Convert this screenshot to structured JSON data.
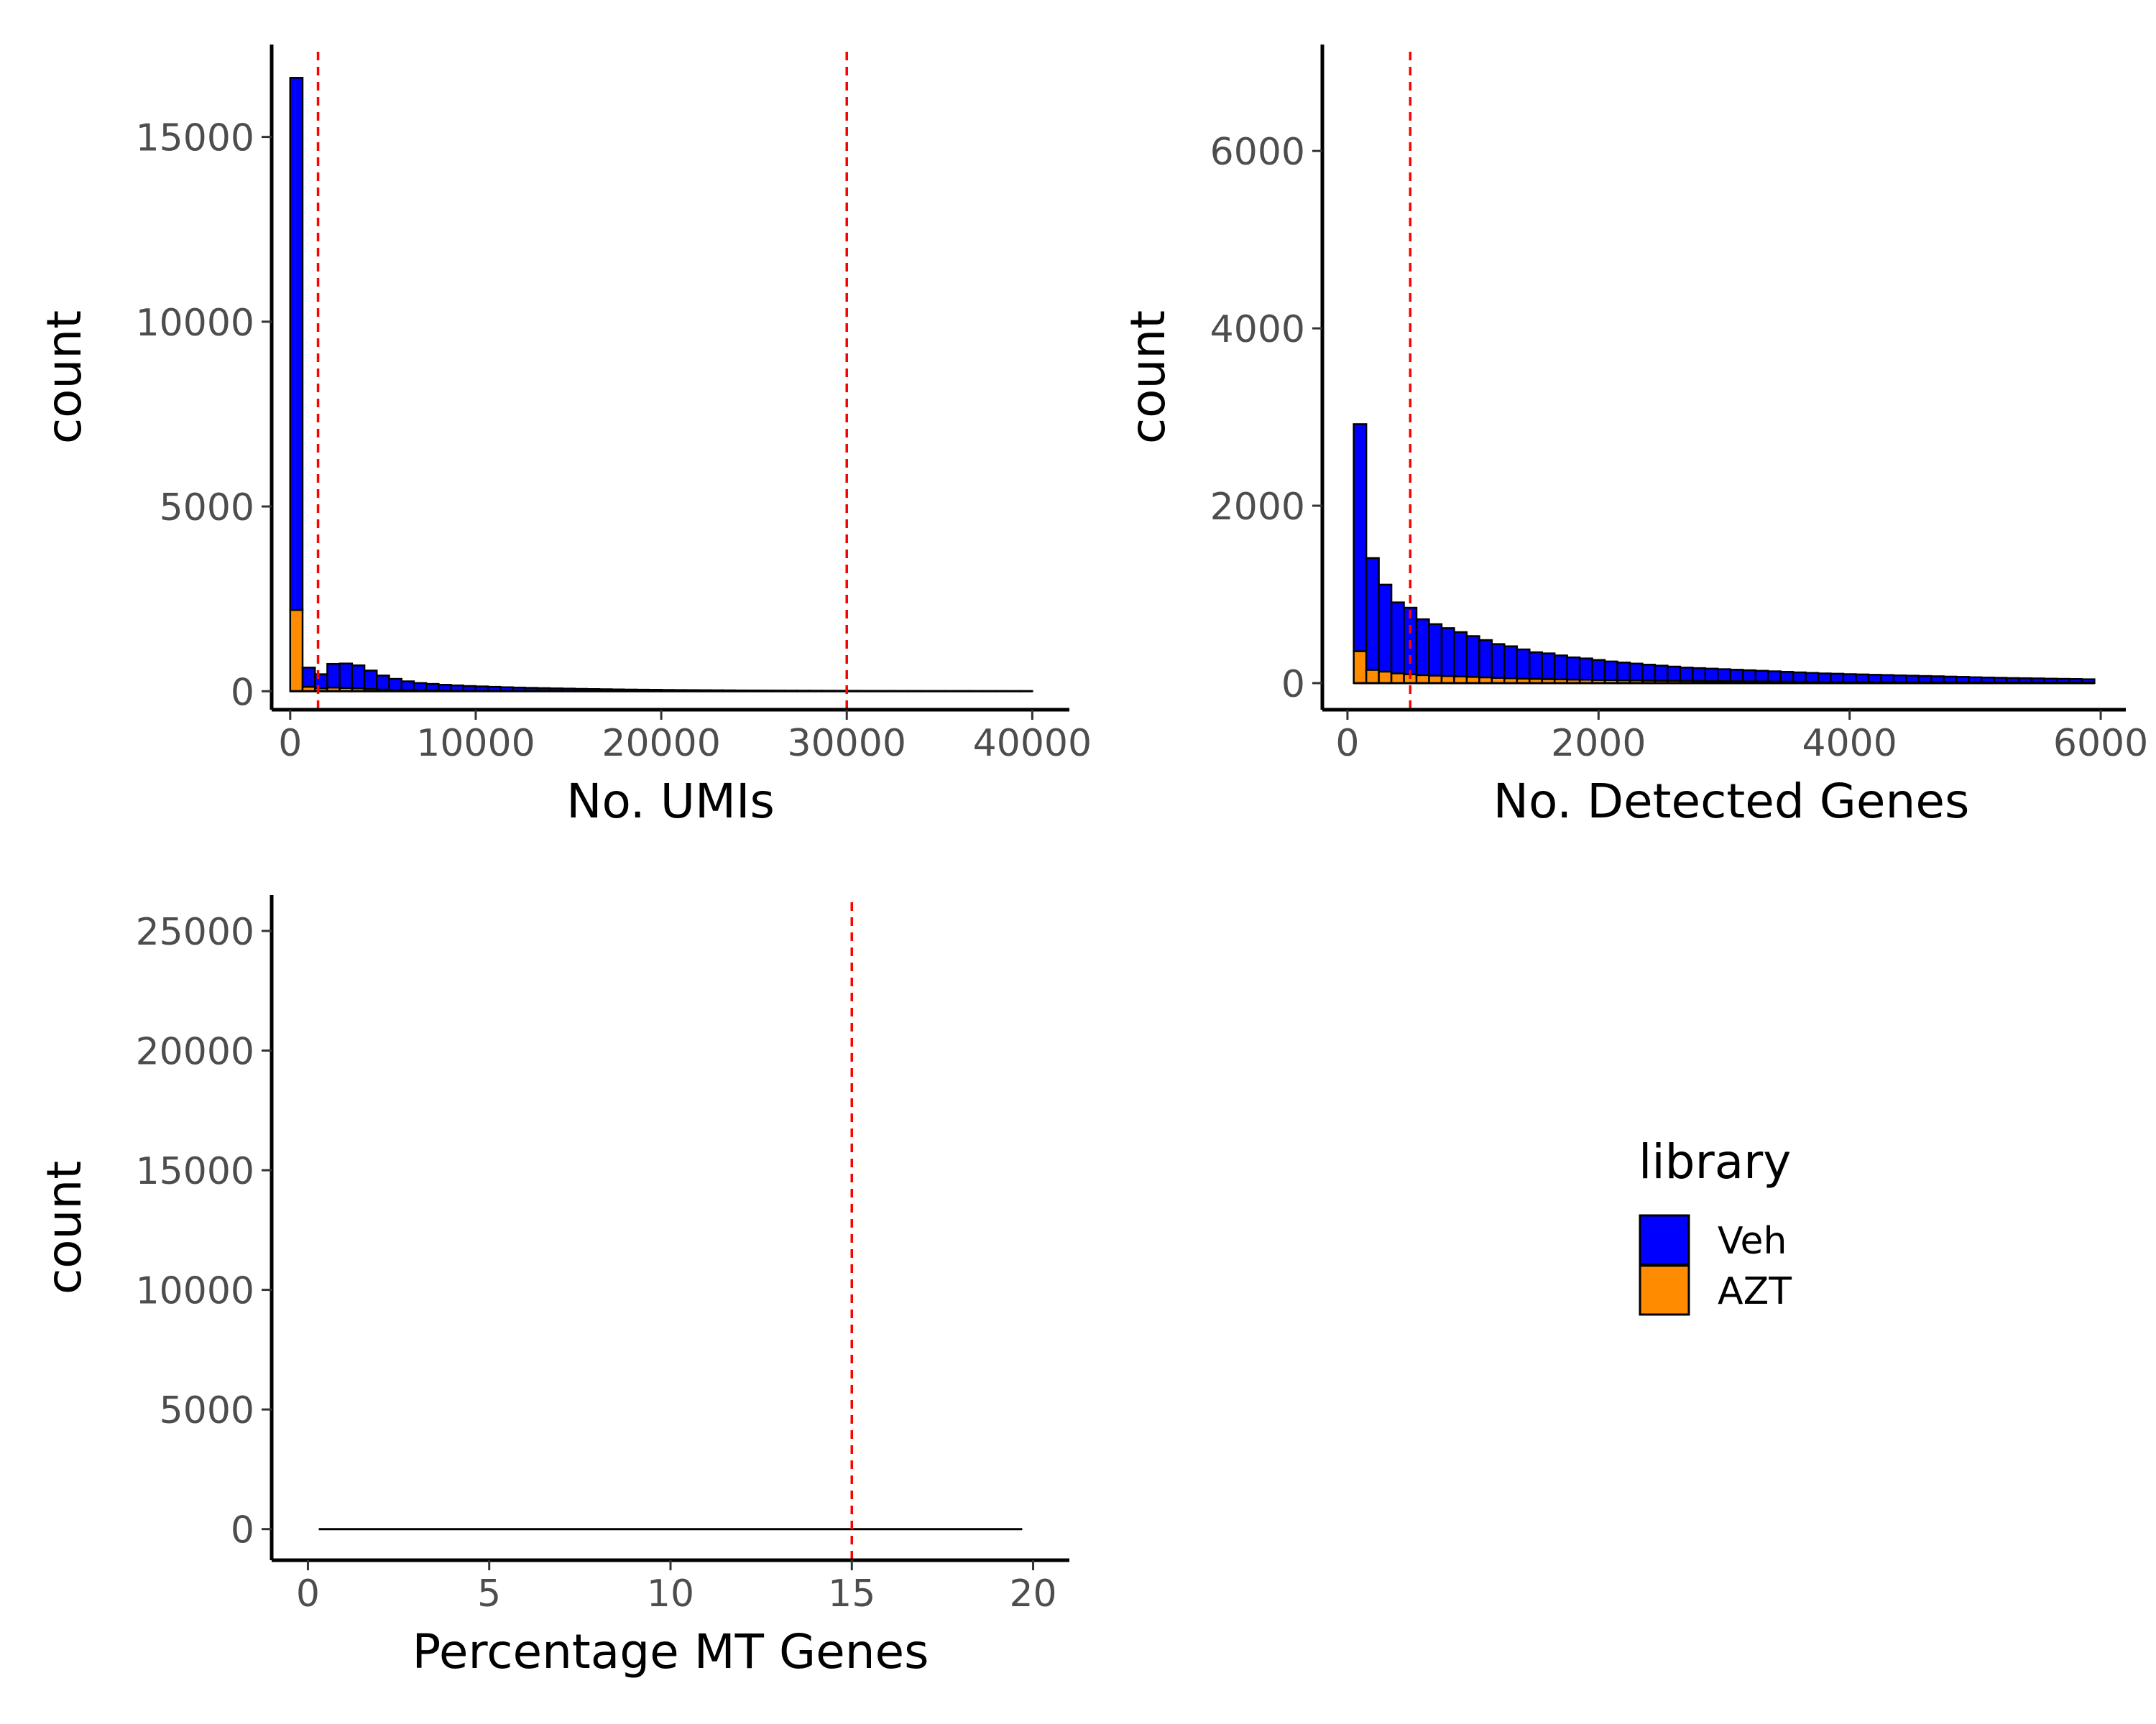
{
  "chart_data": [
    {
      "type": "bar",
      "stacked": true,
      "xlabel": "No. UMIs",
      "ylabel": "count",
      "xlim": [
        -1000,
        42000
      ],
      "ylim": [
        -500,
        17500
      ],
      "xticks": [
        0,
        10000,
        20000,
        30000,
        40000
      ],
      "yticks": [
        0,
        5000,
        10000,
        15000
      ],
      "bin_width": 667,
      "bin_centers": [
        333,
        1000,
        1667,
        2333,
        3000,
        3667,
        4333,
        5000,
        5667,
        6333,
        7000,
        7667,
        8333,
        9000,
        9667,
        10333,
        11000,
        11667,
        12333,
        13000,
        13667,
        14333,
        15000,
        15667,
        16333,
        17000,
        17667,
        18333,
        19000,
        19667,
        20333,
        21000,
        21667,
        22333,
        23000,
        23667,
        24333,
        25000,
        25667,
        26333,
        27000,
        27667,
        28333,
        29000,
        29667,
        30333,
        31000,
        31667,
        32333,
        33000,
        33667,
        34333,
        35000,
        35667,
        36333,
        37000,
        37667,
        38333,
        39000,
        39667
      ],
      "series": [
        {
          "name": "Veh",
          "color": "#0000ff",
          "values": [
            14400,
            520,
            380,
            640,
            660,
            620,
            500,
            380,
            300,
            240,
            200,
            180,
            160,
            145,
            130,
            120,
            110,
            100,
            92,
            85,
            78,
            72,
            66,
            60,
            55,
            50,
            46,
            42,
            39,
            36,
            33,
            30,
            28,
            26,
            24,
            22,
            20,
            19,
            18,
            17,
            16,
            15,
            14,
            13,
            12,
            11,
            10,
            9,
            9,
            8,
            8,
            7,
            7,
            6,
            6,
            5,
            5,
            5,
            4,
            4
          ]
        },
        {
          "name": "AZT",
          "color": "#ff8c00",
          "values": [
            2200,
            120,
            80,
            100,
            90,
            80,
            60,
            45,
            35,
            28,
            22,
            18,
            15,
            13,
            11,
            10,
            9,
            8,
            7,
            6,
            6,
            5,
            5,
            4,
            4,
            4,
            3,
            3,
            3,
            3,
            2,
            2,
            2,
            2,
            2,
            2,
            1,
            1,
            1,
            1,
            1,
            1,
            1,
            1,
            1,
            1,
            1,
            1,
            1,
            0,
            0,
            0,
            0,
            0,
            0,
            0,
            0,
            0,
            0,
            0
          ]
        }
      ],
      "vlines": [
        1500,
        30000
      ]
    },
    {
      "type": "bar",
      "stacked": true,
      "xlabel": "No. Detected Genes",
      "ylabel": "count",
      "xlim": [
        -200,
        6200
      ],
      "ylim": [
        -300,
        7200
      ],
      "xticks": [
        0,
        2000,
        4000,
        6000
      ],
      "yticks": [
        0,
        2000,
        4000,
        6000
      ],
      "bin_width": 100,
      "bin_centers": [
        100,
        200,
        300,
        400,
        500,
        600,
        700,
        800,
        900,
        1000,
        1100,
        1200,
        1300,
        1400,
        1500,
        1600,
        1700,
        1800,
        1900,
        2000,
        2100,
        2200,
        2300,
        2400,
        2500,
        2600,
        2700,
        2800,
        2900,
        3000,
        3100,
        3200,
        3300,
        3400,
        3500,
        3600,
        3700,
        3800,
        3900,
        4000,
        4100,
        4200,
        4300,
        4400,
        4500,
        4600,
        4700,
        4800,
        4900,
        5000,
        5100,
        5200,
        5300,
        5400,
        5500,
        5600,
        5700,
        5800,
        5900
      ],
      "series": [
        {
          "name": "Veh",
          "color": "#0000ff",
          "values": [
            2560,
            1260,
            980,
            800,
            750,
            630,
            580,
            540,
            500,
            460,
            420,
            380,
            360,
            330,
            300,
            290,
            270,
            250,
            240,
            225,
            210,
            200,
            190,
            180,
            170,
            160,
            150,
            145,
            140,
            135,
            130,
            125,
            120,
            115,
            110,
            105,
            100,
            95,
            92,
            88,
            85,
            82,
            79,
            76,
            73,
            70,
            67,
            64,
            61,
            58,
            55,
            52,
            50,
            48,
            46,
            44,
            42,
            40,
            38
          ]
        },
        {
          "name": "AZT",
          "color": "#ff8c00",
          "values": [
            360,
            150,
            130,
            110,
            100,
            90,
            85,
            80,
            75,
            70,
            65,
            60,
            55,
            50,
            48,
            45,
            42,
            40,
            38,
            36,
            34,
            32,
            30,
            28,
            27,
            26,
            25,
            24,
            23,
            22,
            21,
            20,
            19,
            18,
            17,
            16,
            15,
            14,
            14,
            13,
            13,
            12,
            12,
            11,
            11,
            10,
            10,
            9,
            9,
            8,
            8,
            8,
            7,
            7,
            7,
            6,
            6,
            6,
            5
          ]
        }
      ],
      "vlines": [
        500
      ]
    },
    {
      "type": "bar",
      "stacked": true,
      "xlabel": "Percentage MT Genes",
      "ylabel": "count",
      "xlim": [
        -1,
        21
      ],
      "ylim": [
        -1300,
        26500
      ],
      "xticks": [
        0,
        5,
        10,
        15,
        20
      ],
      "yticks": [
        0,
        5000,
        10000,
        15000,
        20000,
        25000
      ],
      "baseline_range": [
        0.3,
        19.7
      ],
      "series": [],
      "vlines": [
        15
      ]
    }
  ],
  "legend": {
    "title": "library",
    "items": [
      {
        "label": "Veh",
        "color": "#0000ff"
      },
      {
        "label": "AZT",
        "color": "#ff8c00"
      }
    ]
  },
  "styles": {
    "threshold_color": "#ff0000",
    "axis_color": "#000000",
    "bar_outline": "#000000"
  }
}
